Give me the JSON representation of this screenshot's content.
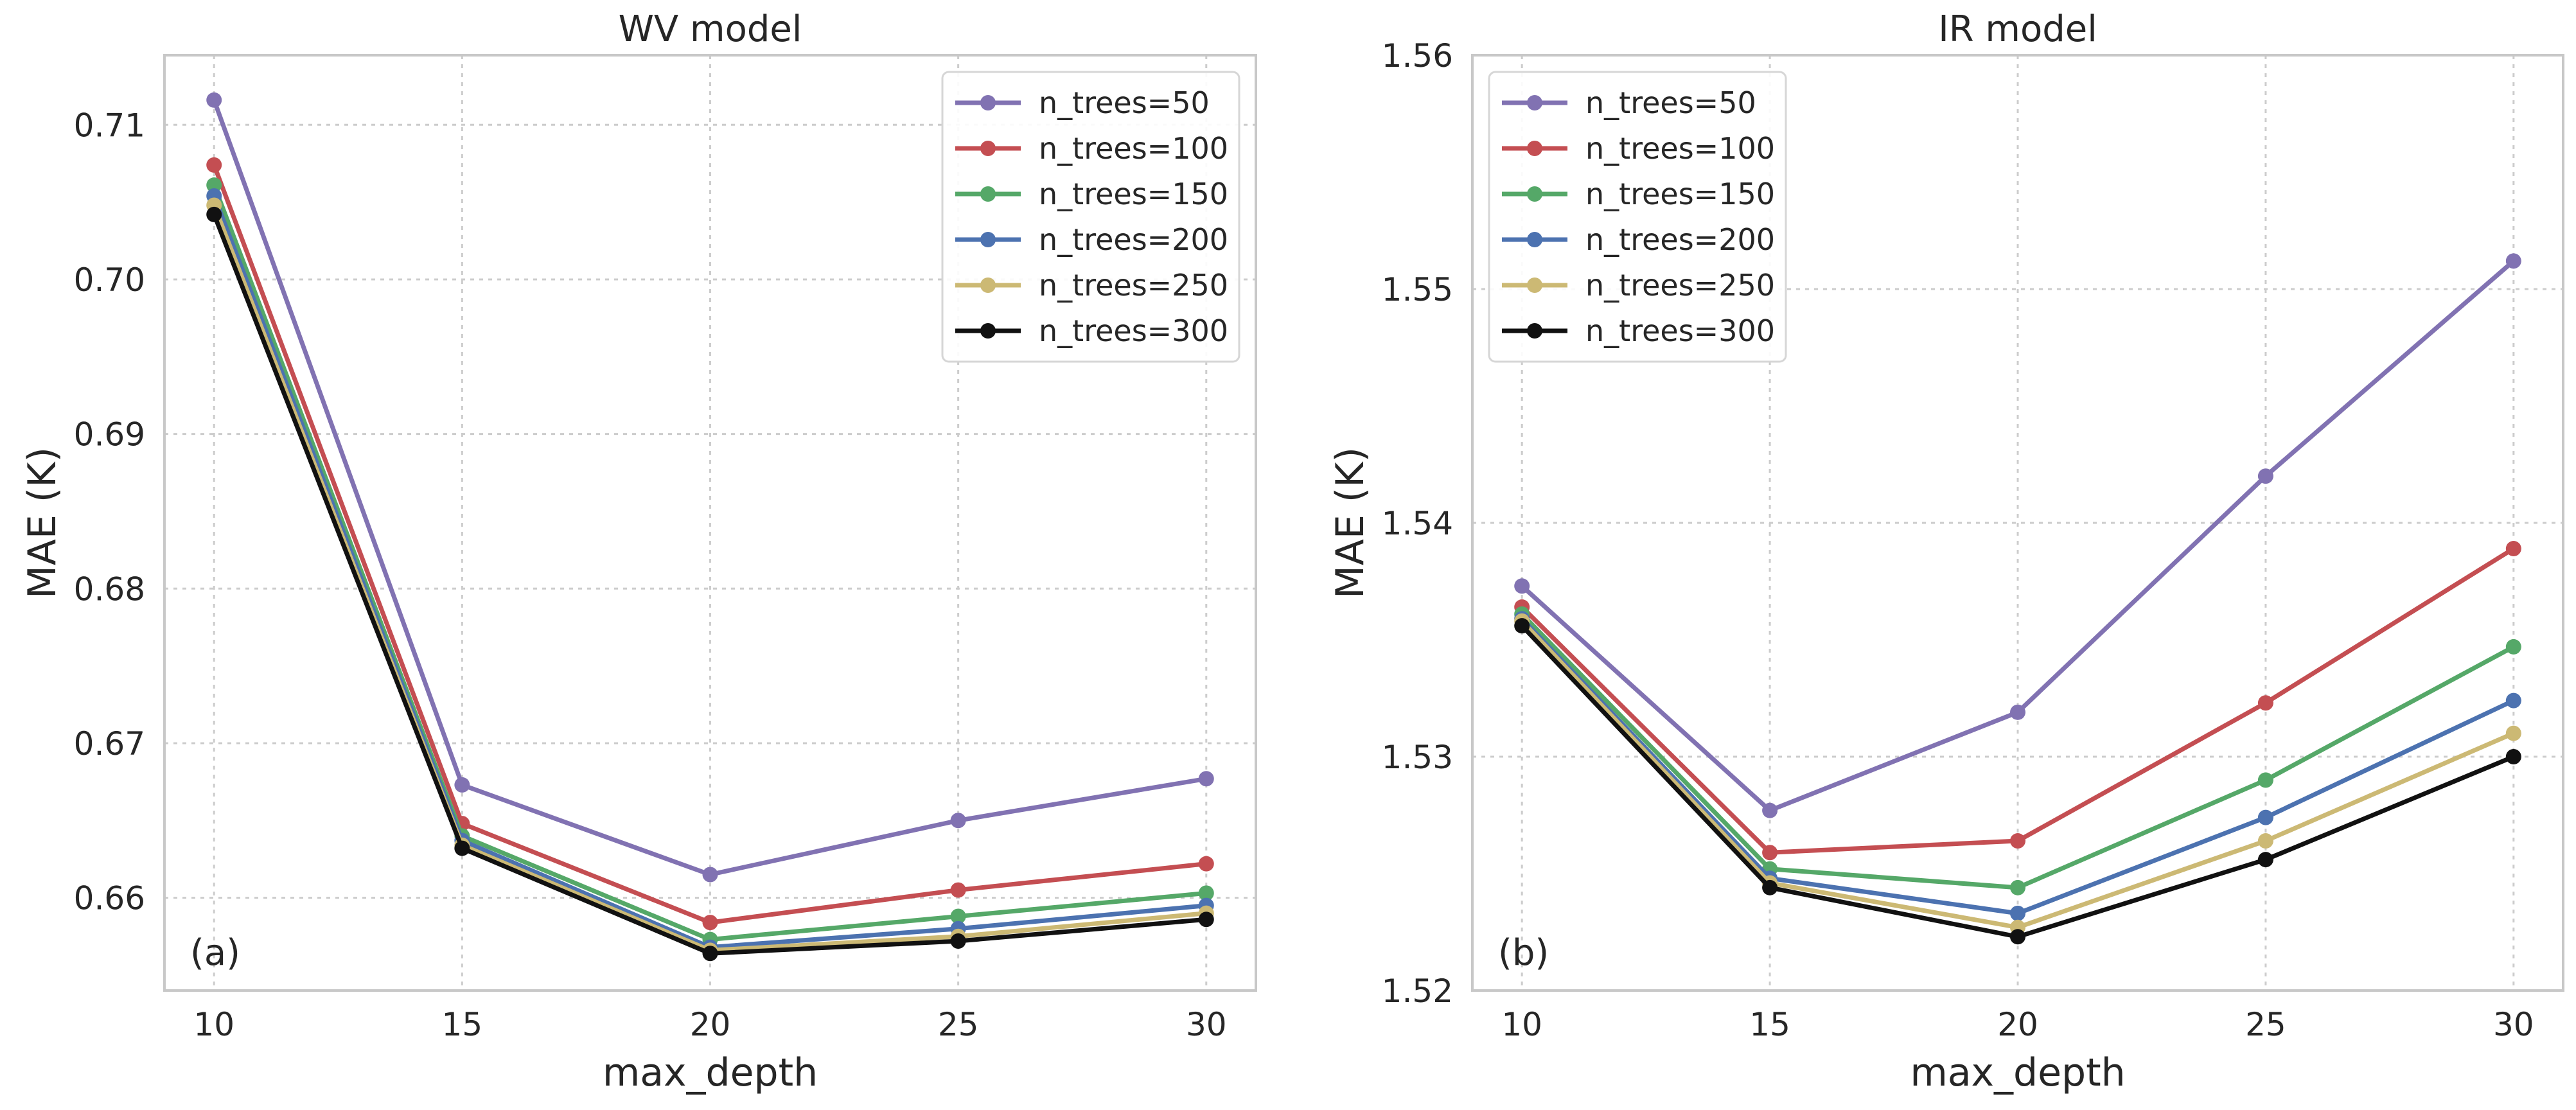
{
  "chart_data": [
    {
      "type": "line",
      "title": "WV model",
      "xlabel": "max_depth",
      "ylabel": "MAE (K)",
      "panel_label": "(a)",
      "x": [
        10,
        15,
        20,
        25,
        30
      ],
      "xlim": [
        9,
        31
      ],
      "ylim": [
        0.654,
        0.7145
      ],
      "xticks": [
        10,
        15,
        20,
        25,
        30
      ],
      "xtick_labels": [
        "10",
        "15",
        "20",
        "25",
        "30"
      ],
      "yticks": [
        0.66,
        0.67,
        0.68,
        0.69,
        0.7,
        0.71
      ],
      "ytick_labels": [
        "0.66",
        "0.67",
        "0.68",
        "0.69",
        "0.70",
        "0.71"
      ],
      "grid": true,
      "legend_position": "upper-right",
      "series": [
        {
          "name": "n_trees=50",
          "color": "#8172b2",
          "values": [
            0.7116,
            0.6673,
            0.6615,
            0.665,
            0.6677
          ]
        },
        {
          "name": "n_trees=100",
          "color": "#c44e52",
          "values": [
            0.7074,
            0.6648,
            0.6584,
            0.6605,
            0.6622
          ]
        },
        {
          "name": "n_trees=150",
          "color": "#55a868",
          "values": [
            0.7061,
            0.664,
            0.6573,
            0.6588,
            0.6603
          ]
        },
        {
          "name": "n_trees=200",
          "color": "#4c72b0",
          "values": [
            0.7054,
            0.6637,
            0.6568,
            0.658,
            0.6595
          ]
        },
        {
          "name": "n_trees=250",
          "color": "#ccb974",
          "values": [
            0.7048,
            0.6634,
            0.6566,
            0.6575,
            0.659
          ]
        },
        {
          "name": "n_trees=300",
          "color": "#111111",
          "values": [
            0.7042,
            0.6632,
            0.6564,
            0.6572,
            0.6586
          ]
        }
      ]
    },
    {
      "type": "line",
      "title": "IR model",
      "xlabel": "max_depth",
      "ylabel": "MAE (K)",
      "panel_label": "(b)",
      "x": [
        10,
        15,
        20,
        25,
        30
      ],
      "xlim": [
        9,
        31
      ],
      "ylim": [
        1.52,
        1.56
      ],
      "xticks": [
        10,
        15,
        20,
        25,
        30
      ],
      "xtick_labels": [
        "10",
        "15",
        "20",
        "25",
        "30"
      ],
      "yticks": [
        1.52,
        1.53,
        1.54,
        1.55,
        1.56
      ],
      "ytick_labels": [
        "1.52",
        "1.53",
        "1.54",
        "1.55",
        "1.56"
      ],
      "grid": true,
      "legend_position": "upper-left",
      "series": [
        {
          "name": "n_trees=50",
          "color": "#8172b2",
          "values": [
            1.5373,
            1.5277,
            1.5319,
            1.542,
            1.5512
          ]
        },
        {
          "name": "n_trees=100",
          "color": "#c44e52",
          "values": [
            1.5364,
            1.5259,
            1.5264,
            1.5323,
            1.5389
          ]
        },
        {
          "name": "n_trees=150",
          "color": "#55a868",
          "values": [
            1.5361,
            1.5252,
            1.5244,
            1.529,
            1.5347
          ]
        },
        {
          "name": "n_trees=200",
          "color": "#4c72b0",
          "values": [
            1.5359,
            1.5248,
            1.5233,
            1.5274,
            1.5324
          ]
        },
        {
          "name": "n_trees=250",
          "color": "#ccb974",
          "values": [
            1.5358,
            1.5246,
            1.5227,
            1.5264,
            1.531
          ]
        },
        {
          "name": "n_trees=300",
          "color": "#111111",
          "values": [
            1.5356,
            1.5244,
            1.5223,
            1.5256,
            1.53
          ]
        }
      ]
    }
  ]
}
